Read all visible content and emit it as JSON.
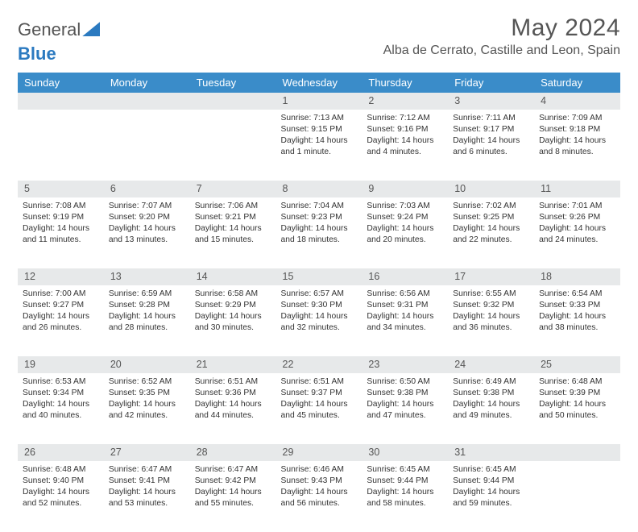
{
  "logo": {
    "part1": "General",
    "part2": "Blue"
  },
  "title": "May 2024",
  "location": "Alba de Cerrato, Castille and Leon, Spain",
  "colors": {
    "header_bg": "#3a8cc9",
    "header_text": "#ffffff",
    "daynum_bg": "#e7e9ea",
    "text": "#333333",
    "logo_blue": "#2b7ac0",
    "logo_gray": "#555555"
  },
  "weekdays": [
    "Sunday",
    "Monday",
    "Tuesday",
    "Wednesday",
    "Thursday",
    "Friday",
    "Saturday"
  ],
  "weeks": [
    {
      "nums": [
        "",
        "",
        "",
        "1",
        "2",
        "3",
        "4"
      ],
      "cells": [
        {
          "sunrise": "",
          "sunset": "",
          "daylight": ""
        },
        {
          "sunrise": "",
          "sunset": "",
          "daylight": ""
        },
        {
          "sunrise": "",
          "sunset": "",
          "daylight": ""
        },
        {
          "sunrise": "Sunrise: 7:13 AM",
          "sunset": "Sunset: 9:15 PM",
          "daylight": "Daylight: 14 hours and 1 minute."
        },
        {
          "sunrise": "Sunrise: 7:12 AM",
          "sunset": "Sunset: 9:16 PM",
          "daylight": "Daylight: 14 hours and 4 minutes."
        },
        {
          "sunrise": "Sunrise: 7:11 AM",
          "sunset": "Sunset: 9:17 PM",
          "daylight": "Daylight: 14 hours and 6 minutes."
        },
        {
          "sunrise": "Sunrise: 7:09 AM",
          "sunset": "Sunset: 9:18 PM",
          "daylight": "Daylight: 14 hours and 8 minutes."
        }
      ]
    },
    {
      "nums": [
        "5",
        "6",
        "7",
        "8",
        "9",
        "10",
        "11"
      ],
      "cells": [
        {
          "sunrise": "Sunrise: 7:08 AM",
          "sunset": "Sunset: 9:19 PM",
          "daylight": "Daylight: 14 hours and 11 minutes."
        },
        {
          "sunrise": "Sunrise: 7:07 AM",
          "sunset": "Sunset: 9:20 PM",
          "daylight": "Daylight: 14 hours and 13 minutes."
        },
        {
          "sunrise": "Sunrise: 7:06 AM",
          "sunset": "Sunset: 9:21 PM",
          "daylight": "Daylight: 14 hours and 15 minutes."
        },
        {
          "sunrise": "Sunrise: 7:04 AM",
          "sunset": "Sunset: 9:23 PM",
          "daylight": "Daylight: 14 hours and 18 minutes."
        },
        {
          "sunrise": "Sunrise: 7:03 AM",
          "sunset": "Sunset: 9:24 PM",
          "daylight": "Daylight: 14 hours and 20 minutes."
        },
        {
          "sunrise": "Sunrise: 7:02 AM",
          "sunset": "Sunset: 9:25 PM",
          "daylight": "Daylight: 14 hours and 22 minutes."
        },
        {
          "sunrise": "Sunrise: 7:01 AM",
          "sunset": "Sunset: 9:26 PM",
          "daylight": "Daylight: 14 hours and 24 minutes."
        }
      ]
    },
    {
      "nums": [
        "12",
        "13",
        "14",
        "15",
        "16",
        "17",
        "18"
      ],
      "cells": [
        {
          "sunrise": "Sunrise: 7:00 AM",
          "sunset": "Sunset: 9:27 PM",
          "daylight": "Daylight: 14 hours and 26 minutes."
        },
        {
          "sunrise": "Sunrise: 6:59 AM",
          "sunset": "Sunset: 9:28 PM",
          "daylight": "Daylight: 14 hours and 28 minutes."
        },
        {
          "sunrise": "Sunrise: 6:58 AM",
          "sunset": "Sunset: 9:29 PM",
          "daylight": "Daylight: 14 hours and 30 minutes."
        },
        {
          "sunrise": "Sunrise: 6:57 AM",
          "sunset": "Sunset: 9:30 PM",
          "daylight": "Daylight: 14 hours and 32 minutes."
        },
        {
          "sunrise": "Sunrise: 6:56 AM",
          "sunset": "Sunset: 9:31 PM",
          "daylight": "Daylight: 14 hours and 34 minutes."
        },
        {
          "sunrise": "Sunrise: 6:55 AM",
          "sunset": "Sunset: 9:32 PM",
          "daylight": "Daylight: 14 hours and 36 minutes."
        },
        {
          "sunrise": "Sunrise: 6:54 AM",
          "sunset": "Sunset: 9:33 PM",
          "daylight": "Daylight: 14 hours and 38 minutes."
        }
      ]
    },
    {
      "nums": [
        "19",
        "20",
        "21",
        "22",
        "23",
        "24",
        "25"
      ],
      "cells": [
        {
          "sunrise": "Sunrise: 6:53 AM",
          "sunset": "Sunset: 9:34 PM",
          "daylight": "Daylight: 14 hours and 40 minutes."
        },
        {
          "sunrise": "Sunrise: 6:52 AM",
          "sunset": "Sunset: 9:35 PM",
          "daylight": "Daylight: 14 hours and 42 minutes."
        },
        {
          "sunrise": "Sunrise: 6:51 AM",
          "sunset": "Sunset: 9:36 PM",
          "daylight": "Daylight: 14 hours and 44 minutes."
        },
        {
          "sunrise": "Sunrise: 6:51 AM",
          "sunset": "Sunset: 9:37 PM",
          "daylight": "Daylight: 14 hours and 45 minutes."
        },
        {
          "sunrise": "Sunrise: 6:50 AM",
          "sunset": "Sunset: 9:38 PM",
          "daylight": "Daylight: 14 hours and 47 minutes."
        },
        {
          "sunrise": "Sunrise: 6:49 AM",
          "sunset": "Sunset: 9:38 PM",
          "daylight": "Daylight: 14 hours and 49 minutes."
        },
        {
          "sunrise": "Sunrise: 6:48 AM",
          "sunset": "Sunset: 9:39 PM",
          "daylight": "Daylight: 14 hours and 50 minutes."
        }
      ]
    },
    {
      "nums": [
        "26",
        "27",
        "28",
        "29",
        "30",
        "31",
        ""
      ],
      "cells": [
        {
          "sunrise": "Sunrise: 6:48 AM",
          "sunset": "Sunset: 9:40 PM",
          "daylight": "Daylight: 14 hours and 52 minutes."
        },
        {
          "sunrise": "Sunrise: 6:47 AM",
          "sunset": "Sunset: 9:41 PM",
          "daylight": "Daylight: 14 hours and 53 minutes."
        },
        {
          "sunrise": "Sunrise: 6:47 AM",
          "sunset": "Sunset: 9:42 PM",
          "daylight": "Daylight: 14 hours and 55 minutes."
        },
        {
          "sunrise": "Sunrise: 6:46 AM",
          "sunset": "Sunset: 9:43 PM",
          "daylight": "Daylight: 14 hours and 56 minutes."
        },
        {
          "sunrise": "Sunrise: 6:45 AM",
          "sunset": "Sunset: 9:44 PM",
          "daylight": "Daylight: 14 hours and 58 minutes."
        },
        {
          "sunrise": "Sunrise: 6:45 AM",
          "sunset": "Sunset: 9:44 PM",
          "daylight": "Daylight: 14 hours and 59 minutes."
        },
        {
          "sunrise": "",
          "sunset": "",
          "daylight": ""
        }
      ]
    }
  ]
}
